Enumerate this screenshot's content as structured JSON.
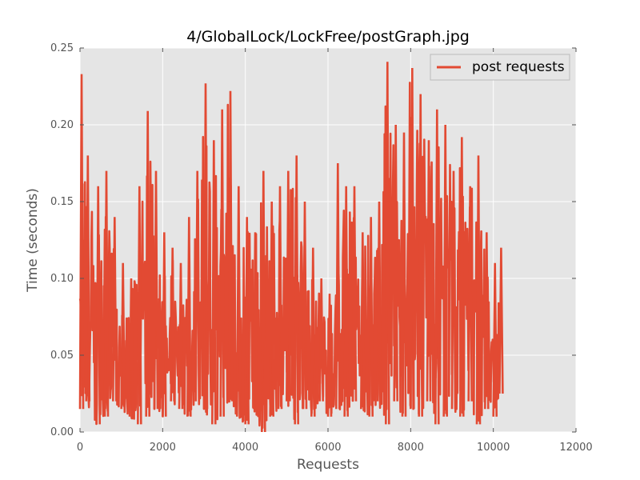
{
  "chart_data": {
    "type": "line",
    "title": "4/GlobalLock/LockFree/postGraph.jpg",
    "xlabel": "Requests",
    "ylabel": "Time (seconds)",
    "xlim": [
      0,
      12000
    ],
    "ylim": [
      0,
      0.25
    ],
    "x_ticks": [
      "0",
      "2000",
      "4000",
      "6000",
      "8000",
      "10000",
      "12000"
    ],
    "y_ticks": [
      "0.00",
      "0.05",
      "0.10",
      "0.15",
      "0.20",
      "0.25"
    ],
    "grid": true,
    "legend_position": "top-right",
    "x_range_of_data": [
      0,
      10150
    ],
    "series": [
      {
        "name": "post requests",
        "color": "#e24a33",
        "envelope_x": [
          0,
          150,
          400,
          600,
          800,
          1000,
          1200,
          1400,
          1600,
          1800,
          2000,
          2200,
          2400,
          2600,
          2800,
          3000,
          3200,
          3400,
          3600,
          3800,
          4000,
          4200,
          4400,
          4600,
          4800,
          5000,
          5200,
          5400,
          5600,
          5800,
          6000,
          6200,
          6400,
          6600,
          6800,
          7000,
          7200,
          7400,
          7600,
          7800,
          8000,
          8200,
          8400,
          8600,
          8800,
          9000,
          9200,
          9400,
          9600,
          9800,
          10000,
          10150
        ],
        "envelope_max": [
          0.233,
          0.18,
          0.16,
          0.17,
          0.14,
          0.11,
          0.1,
          0.16,
          0.209,
          0.17,
          0.13,
          0.12,
          0.11,
          0.14,
          0.17,
          0.227,
          0.19,
          0.21,
          0.222,
          0.16,
          0.14,
          0.13,
          0.17,
          0.15,
          0.16,
          0.17,
          0.18,
          0.15,
          0.12,
          0.1,
          0.09,
          0.175,
          0.16,
          0.16,
          0.13,
          0.14,
          0.15,
          0.241,
          0.2,
          0.195,
          0.237,
          0.22,
          0.19,
          0.21,
          0.2,
          0.17,
          0.192,
          0.16,
          0.18,
          0.13,
          0.11,
          0.12
        ],
        "envelope_min": [
          0.015,
          0.02,
          0.005,
          0.01,
          0.02,
          0.015,
          0.01,
          0.005,
          0.01,
          0.015,
          0.01,
          0.02,
          0.015,
          0.01,
          0.02,
          0.015,
          0.005,
          0.01,
          0.02,
          0.01,
          0.005,
          0.015,
          0.0,
          0.01,
          0.015,
          0.02,
          0.005,
          0.015,
          0.01,
          0.02,
          0.01,
          0.015,
          0.01,
          0.02,
          0.015,
          0.01,
          0.02,
          0.005,
          0.02,
          0.01,
          0.015,
          0.01,
          0.02,
          0.005,
          0.01,
          0.015,
          0.01,
          0.02,
          0.005,
          0.015,
          0.01,
          0.025
        ]
      }
    ]
  }
}
